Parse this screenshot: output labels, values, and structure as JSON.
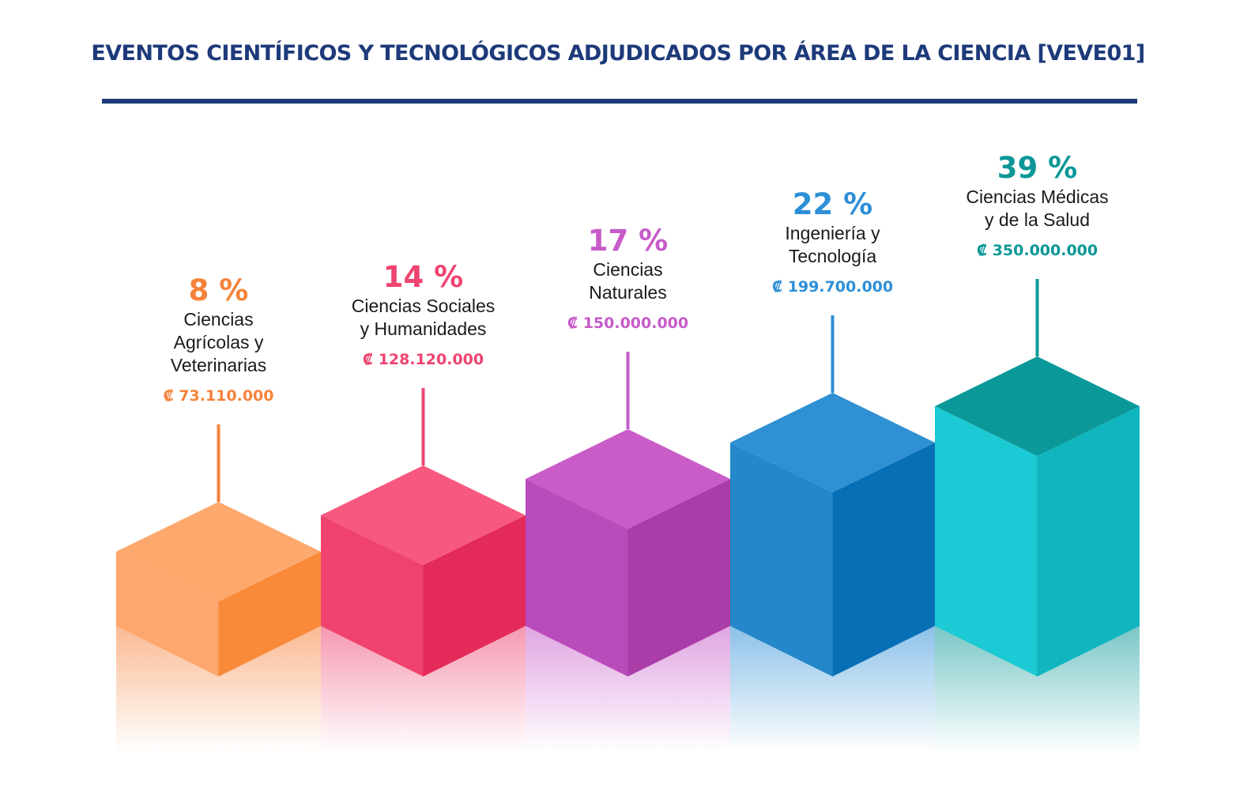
{
  "title": "EVENTOS CIENTÍFICOS Y TECNOLÓGICOS ADJUDICADOS POR ÁREA DE LA CIENCIA [VEVE01]",
  "chart_data": {
    "type": "bar",
    "title": "EVENTOS CIENTÍFICOS Y TECNOLÓGICOS ADJUDICADOS POR ÁREA DE LA CIENCIA [VEVE01]",
    "categories": [
      "Ciencias Agrícolas y Veterinarias",
      "Ciencias Sociales y Humanidades",
      "Ciencias Naturales",
      "Ingeniería y Tecnología",
      "Ciencias Médicas y de la Salud"
    ],
    "series": [
      {
        "values": [
          8,
          14,
          17,
          22,
          39
        ]
      }
    ],
    "bars": [
      {
        "percent": 8,
        "percent_label": "8 %",
        "label_lines": [
          "Ciencias",
          "Agrícolas y",
          "Veterinarias"
        ],
        "amount": "₡ 73.110.000",
        "color": "#f5823a",
        "light": "#fda66e",
        "dark": "#f98a3a",
        "top": "#fda86c"
      },
      {
        "percent": 14,
        "percent_label": "14 %",
        "label_lines": [
          "Ciencias Sociales",
          "y Humanidades"
        ],
        "amount": "₡ 128.120.000",
        "color": "#ee4470",
        "light": "#f0426f",
        "dark": "#e42a59",
        "top": "#f6587e"
      },
      {
        "percent": 17,
        "percent_label": "17 %",
        "label_lines": [
          "Ciencias",
          "Naturales"
        ],
        "amount": "₡ 150.000.000",
        "color": "#c65bc9",
        "light": "#ba4bbb",
        "dark": "#aa3da8",
        "top": "#ca5cc8"
      },
      {
        "percent": 22,
        "percent_label": "22 %",
        "label_lines": [
          "Ingeniería y",
          "Tecnología"
        ],
        "amount": "₡ 199.700.000",
        "color": "#2e8fd6",
        "light": "#2487ca",
        "dark": "#076fb6",
        "top": "#2f90d4"
      },
      {
        "percent": 39,
        "percent_label": "39 %",
        "label_lines": [
          "Ciencias Médicas",
          "y de la Salud"
        ],
        "amount": "₡ 350.000.000",
        "color": "#0b9797",
        "light": "#1ccad5",
        "dark": "#10b5c0",
        "top": "#0a9898"
      }
    ]
  }
}
